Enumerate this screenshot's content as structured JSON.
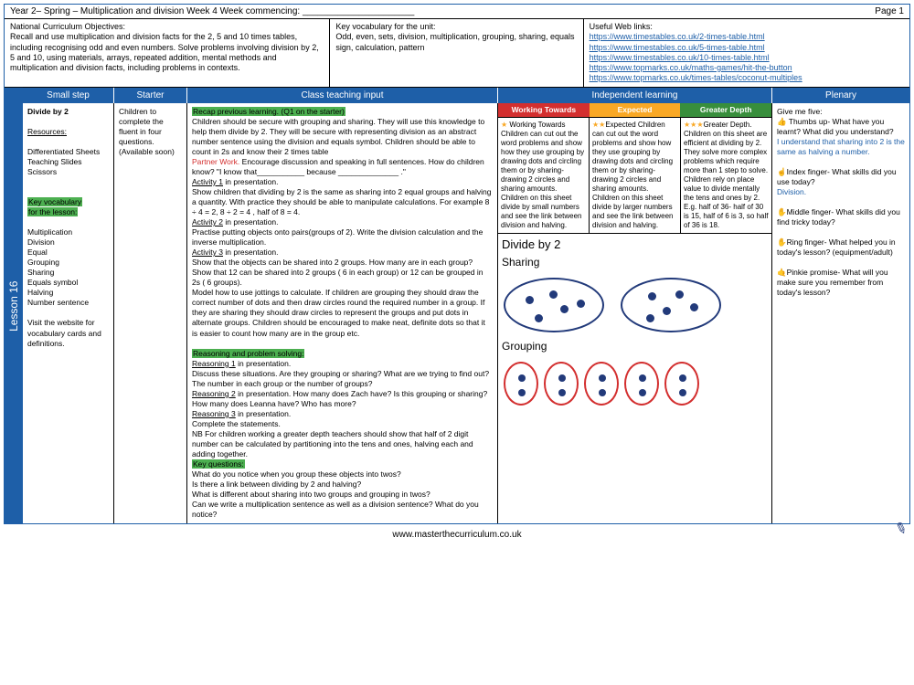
{
  "header": {
    "title": "Year 2– Spring – Multiplication and division Week 4      Week commencing: ______________________",
    "page": "Page 1"
  },
  "info": {
    "objectives_label": "National Curriculum Objectives:",
    "objectives_text": "Recall and use multiplication and division facts for the 2, 5 and 10 times tables, including recognising odd and even numbers. Solve problems involving division by 2, 5 and 10, using materials, arrays, repeated addition, mental methods and multiplication and division facts, including problems in contexts.",
    "vocab_label": "Key vocabulary for the unit:",
    "vocab_text": "Odd, even, sets, division, multiplication, grouping, sharing, equals sign, calculation, pattern",
    "links_label": "Useful Web links:",
    "links": [
      "https://www.timestables.co.uk/2-times-table.html",
      "https://www.timestables.co.uk/5-times-table.html",
      "https://www.timestables.co.uk/10-times-table.html",
      "https://www.topmarks.co.uk/maths-games/hit-the-button",
      "https://www.topmarks.co.uk/times-tables/coconut-multiples"
    ]
  },
  "lesson": {
    "tab": "Lesson  16"
  },
  "columns": [
    "Small step",
    "Starter",
    "Class teaching input",
    "Independent learning",
    "Plenary"
  ],
  "smallstep": {
    "title": "Divide by 2",
    "resources_label": "Resources:",
    "resources_text": "Differentiated Sheets Teaching Slides\nScissors",
    "vocab_label1": "Key vocabulary",
    "vocab_label2": "for the lesson:",
    "vocab_list": "Multiplication\nDivision\nEqual\nGrouping\nSharing\nEquals symbol\nHalving\nNumber sentence",
    "visit": "Visit the website for vocabulary cards and definitions."
  },
  "starter": {
    "text": "Children to complete the fluent in four questions. (Available soon)"
  },
  "teach": {
    "recap": "Recap previous learning. (Q1 on the starter)",
    "p1": "Children should be secure with grouping and sharing. They will use this knowledge to help them divide by 2. They will be secure with representing division as an abstract number sentence using the division and equals symbol. Children should be able to count in 2s and know their 2 times table",
    "partner": "Partner Work.",
    "p2": "Encourage discussion and speaking in full sentences. How do children know?  \"I know that___________ because ______________ .\"",
    "act1": "Activity 1",
    "act1t": "in presentation.",
    "p3": "Show children that dividing by 2 is the same as sharing into 2 equal groups and halving a quantity.  With practice they should be able to manipulate calculations. For example 8 ÷ 4 = 2, 8 ÷ 2 = 4 ,  half of 8 = 4.",
    "act2": "Activity 2",
    "act2t": "in presentation.",
    "p4": "Practise putting objects onto pairs(groups of 2). Write the division calculation and the inverse multiplication.",
    "act3": "Activity 3",
    "act3t": "in presentation.",
    "p5": "Show that the objects can be shared into 2 groups. How many are in each group?  Show that 12 can be shared into 2 groups ( 6 in each group) or 12 can be grouped in 2s ( 6 groups).\nModel how to use jottings to calculate.  If children are grouping they should draw the correct number of dots and then draw circles round the required number in a group. If they are sharing they should draw circles to represent the groups and put dots in alternate groups. Children should be encouraged to make neat, definite dots so that it is easier to count how many are in the group etc.",
    "reason_h": "Reasoning and problem solving:",
    "r1": "Reasoning 1",
    "r1t": "in presentation.",
    "r1b": "Discuss these situations. Are they grouping or sharing?  What are we trying to find out? The number in each group or the number of groups?",
    "r2": "Reasoning 2",
    "r2t": "in presentation. How many does Zach have? Is this grouping or sharing? How many does Leanna have? Who has more?",
    "r3": "Reasoning 3",
    "r3t": "in presentation.",
    "r3b": "Complete the statements.",
    "nb": "NB For children working a greater depth teachers should show that half of 2 digit number can be calculated by partitioning into the tens and ones, halving each and adding together.",
    "keyq": "Key questions:",
    "q1": "What do you notice when you group these objects into twos?",
    "q2": "Is there a link between dividing by 2 and halving?",
    "q3": "What is different about sharing into two groups and grouping in twos?",
    "q4": "Can we write a multiplication sentence as well as a division sentence? What do you notice?"
  },
  "indep": {
    "headers": [
      "Working Towards",
      "Expected",
      "Greater Depth"
    ],
    "stars": [
      "★ ",
      "★★",
      "★★★"
    ],
    "wt": "Working Towards Children can cut out the word problems and show how they use grouping by drawing dots and circling them or by sharing- drawing 2 circles and sharing amounts. Children on this sheet divide by small numbers and see the link between division and halving.",
    "ex": "Expected Children can cut out the word problems and show how they use grouping by drawing dots and circling them or by sharing- drawing 2 circles and sharing amounts. Children on this sheet divide by larger numbers and see the link between division and halving.",
    "gd": "Greater Depth. Children on this sheet are efficient at dividing by 2. They solve more complex problems which require more than 1 step to solve. Children rely on place value to divide mentally the tens and ones by 2. E.g. half of 36- half of 30 is 15, half of 6 is 3, so half of 36 is 18."
  },
  "diagram": {
    "title1": "Divide by 2",
    "title2": "Sharing",
    "title3": "Grouping",
    "sharing_dots_per_oval": 5,
    "grouping_ovals": 5,
    "grouping_dots_per_oval": 2,
    "oval_border_color": "#223a7a",
    "group_border_color": "#d32f2f",
    "dot_color": "#223a7a"
  },
  "plenary": {
    "intro": "Give me five:",
    "thumbs": " Thumbs up- What have you learnt? What did you understand?",
    "thumbs_ans": "I understand that sharing into 2 is the same as halving a number.",
    "index": "Index finger- What skills did you use today?",
    "index_ans": "Division.",
    "middle": "Middle finger- What skills did you find tricky today?",
    "ring": "Ring finger- What helped you in today's lesson? (equipment/adult)",
    "pinkie": "Pinkie promise- What will you make sure you remember from today's lesson?"
  },
  "footer": {
    "url": "www.masterthecurriculum.co.uk"
  },
  "colors": {
    "brand_blue": "#1e5fa8",
    "green_highlight": "#4caf50",
    "red": "#d32f2f",
    "amber": "#f9a825",
    "green": "#388e3c"
  }
}
